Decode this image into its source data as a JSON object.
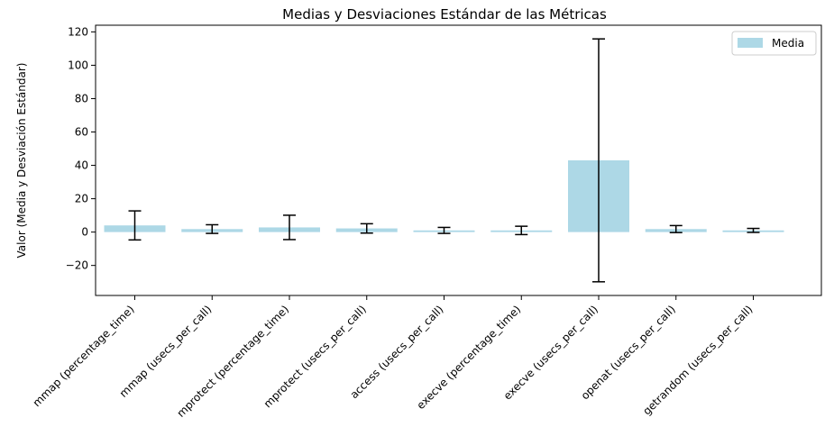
{
  "chart_data": {
    "type": "bar",
    "title": "Medias y Desviaciones Estándar de las Métricas",
    "xlabel": "",
    "ylabel": "Valor (Media y Desviación Estándar)",
    "ylim": [
      -38,
      124
    ],
    "yticks": [
      -20,
      0,
      20,
      40,
      60,
      80,
      100,
      120
    ],
    "yticklabels": [
      "−20",
      "0",
      "20",
      "40",
      "60",
      "80",
      "100",
      "120"
    ],
    "categories": [
      "mmap (percentage_time)",
      "mmap (usecs_per_call)",
      "mprotect (percentage_time)",
      "mprotect (usecs_per_call)",
      "access (usecs_per_call)",
      "execve (percentage_time)",
      "execve (usecs_per_call)",
      "openat (usecs_per_call)",
      "getrandom (usecs_per_call)"
    ],
    "series": [
      {
        "name": "Media",
        "values": [
          4.0,
          1.8,
          2.8,
          2.2,
          1.0,
          1.0,
          43.0,
          1.8,
          1.0
        ],
        "errors": [
          8.7,
          2.6,
          7.3,
          2.8,
          1.8,
          2.5,
          72.8,
          2.1,
          1.2
        ],
        "color": "#add8e6"
      }
    ],
    "error_color": "#000000",
    "legend_position": "top-right",
    "grid": false
  }
}
